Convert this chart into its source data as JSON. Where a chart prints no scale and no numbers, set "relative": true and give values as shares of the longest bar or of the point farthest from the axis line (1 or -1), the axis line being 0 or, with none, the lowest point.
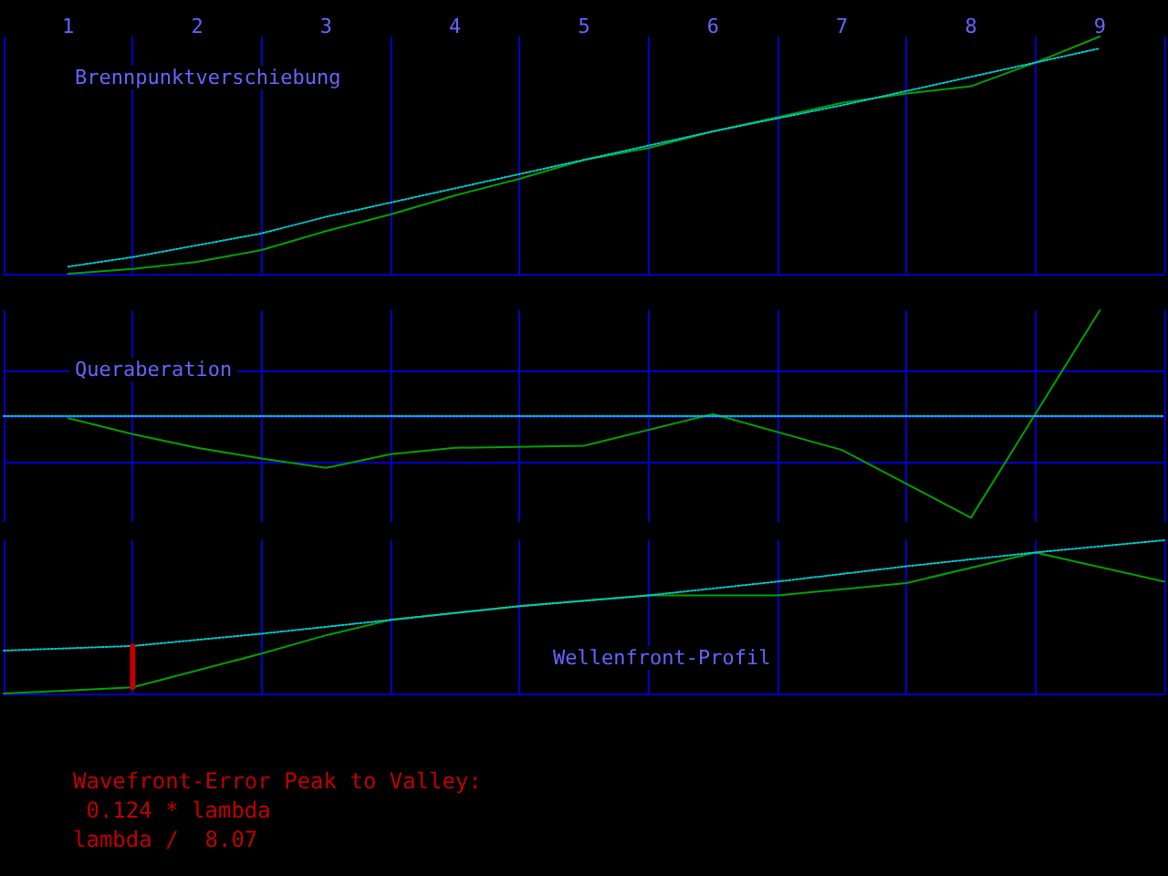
{
  "chart_data": [
    {
      "type": "line",
      "title": "Brennpunktverschiebung",
      "relative": true,
      "xlim": [
        0.5,
        9.5
      ],
      "xticks": [
        1,
        2,
        3,
        4,
        5,
        6,
        7,
        8,
        9
      ],
      "tick_labels": "x",
      "marker": "none",
      "series": [
        {
          "color": "#00a000",
          "line_style": "solid",
          "x": [
            1,
            1.5,
            2,
            2.5,
            3,
            3.5,
            4,
            4.5,
            5,
            5.5,
            6,
            6.5,
            7,
            7.5,
            8,
            8.5,
            9
          ],
          "values": [
            0,
            0.02,
            0.05,
            0.1,
            0.18,
            0.25,
            0.33,
            0.4,
            0.48,
            0.53,
            0.6,
            0.66,
            0.72,
            0.76,
            0.79,
            0.89,
            1.0
          ]
        },
        {
          "color": "#00c8c8",
          "line_style": "dotted",
          "x": [
            1,
            1.5,
            2,
            2.5,
            3,
            4,
            5,
            6,
            7,
            8,
            9
          ],
          "values": [
            0.03,
            0.07,
            0.12,
            0.17,
            0.24,
            0.36,
            0.48,
            0.6,
            0.71,
            0.83,
            0.95
          ]
        }
      ],
      "ref_lines": [
        {
          "axis": "x",
          "value": 0.5,
          "color": "#0000c8"
        },
        {
          "axis": "x",
          "value": 1.5,
          "color": "#0000c8"
        },
        {
          "axis": "x",
          "value": 2.5,
          "color": "#0000c8"
        },
        {
          "axis": "x",
          "value": 3.5,
          "color": "#0000c8"
        },
        {
          "axis": "x",
          "value": 4.5,
          "color": "#0000c8"
        },
        {
          "axis": "x",
          "value": 5.5,
          "color": "#0000c8"
        },
        {
          "axis": "x",
          "value": 6.5,
          "color": "#0000c8"
        },
        {
          "axis": "x",
          "value": 7.5,
          "color": "#0000c8"
        },
        {
          "axis": "x",
          "value": 8.5,
          "color": "#0000c8"
        },
        {
          "axis": "x",
          "value": 9.5,
          "color": "#0000c8"
        }
      ]
    },
    {
      "type": "line",
      "title": "Queraberation",
      "relative": true,
      "xlim": [
        0.5,
        9.5
      ],
      "xticks": [
        1,
        2,
        3,
        4,
        5,
        6,
        7,
        8,
        9
      ],
      "tick_labels": false,
      "marker": "none",
      "series": [
        {
          "color": "#00a000",
          "line_style": "solid",
          "x": [
            1,
            1.5,
            2,
            2.5,
            3,
            3.5,
            4,
            5,
            6,
            7,
            8,
            9
          ],
          "values": [
            -0.02,
            -0.17,
            -0.3,
            -0.4,
            -0.49,
            -0.36,
            -0.3,
            -0.28,
            0.02,
            -0.32,
            -0.96,
            1.0
          ]
        },
        {
          "color": "#00c8c8",
          "line_style": "dotted",
          "x": [
            0.5,
            9.5
          ],
          "values": [
            0,
            0
          ]
        }
      ],
      "ref_lines": [
        {
          "axis": "y",
          "value": 0.43,
          "color": "#0000c8"
        },
        {
          "axis": "y",
          "value": -0.43,
          "color": "#0000c8"
        },
        {
          "axis": "x",
          "value": 0.5,
          "color": "#0000c8"
        },
        {
          "axis": "x",
          "value": 1.5,
          "color": "#0000c8"
        },
        {
          "axis": "x",
          "value": 2.5,
          "color": "#0000c8"
        },
        {
          "axis": "x",
          "value": 3.5,
          "color": "#0000c8"
        },
        {
          "axis": "x",
          "value": 4.5,
          "color": "#0000c8"
        },
        {
          "axis": "x",
          "value": 5.5,
          "color": "#0000c8"
        },
        {
          "axis": "x",
          "value": 6.5,
          "color": "#0000c8"
        },
        {
          "axis": "x",
          "value": 7.5,
          "color": "#0000c8"
        },
        {
          "axis": "x",
          "value": 8.5,
          "color": "#0000c8"
        },
        {
          "axis": "x",
          "value": 9.5,
          "color": "#0000c8"
        }
      ]
    },
    {
      "type": "line",
      "title": "Wellenfront-Profil",
      "relative": true,
      "xlim": [
        0.5,
        9.5
      ],
      "xticks": [
        1,
        2,
        3,
        4,
        5,
        6,
        7,
        8,
        9
      ],
      "tick_labels": false,
      "marker": "none",
      "series": [
        {
          "color": "#00a000",
          "line_style": "solid",
          "x": [
            0.5,
            1,
            1.5,
            2,
            2.5,
            3,
            3.5,
            4.5,
            5.5,
            6.5,
            7.5,
            8.5,
            9.5
          ],
          "values": [
            0,
            0.02,
            0.04,
            0.15,
            0.26,
            0.38,
            0.48,
            0.57,
            0.64,
            0.64,
            0.72,
            0.92,
            0.73
          ]
        },
        {
          "color": "#00c8c8",
          "line_style": "dotted",
          "x": [
            0.5,
            1.5,
            2.5,
            3.5,
            4.5,
            5.5,
            6.5,
            7.5,
            8.5,
            9.5
          ],
          "values": [
            0.28,
            0.31,
            0.39,
            0.48,
            0.57,
            0.64,
            0.73,
            0.83,
            0.92,
            1.0
          ]
        },
        {
          "color": "#c00000",
          "line_style": "solid",
          "x": [
            1.5,
            1.5
          ],
          "values": [
            0.04,
            0.31
          ]
        }
      ],
      "ref_lines": [
        {
          "axis": "x",
          "value": 0.5,
          "color": "#0000c8"
        },
        {
          "axis": "x",
          "value": 1.5,
          "color": "#0000c8"
        },
        {
          "axis": "x",
          "value": 2.5,
          "color": "#0000c8"
        },
        {
          "axis": "x",
          "value": 3.5,
          "color": "#0000c8"
        },
        {
          "axis": "x",
          "value": 4.5,
          "color": "#0000c8"
        },
        {
          "axis": "x",
          "value": 5.5,
          "color": "#0000c8"
        },
        {
          "axis": "x",
          "value": 6.5,
          "color": "#0000c8"
        },
        {
          "axis": "x",
          "value": 7.5,
          "color": "#0000c8"
        },
        {
          "axis": "x",
          "value": 8.5,
          "color": "#0000c8"
        },
        {
          "axis": "x",
          "value": 9.5,
          "color": "#0000c8"
        }
      ],
      "annotations": [
        "Wavefront-Error Peak to Valley:",
        " 0.124 * lambda",
        "lambda /  8.07"
      ]
    }
  ]
}
